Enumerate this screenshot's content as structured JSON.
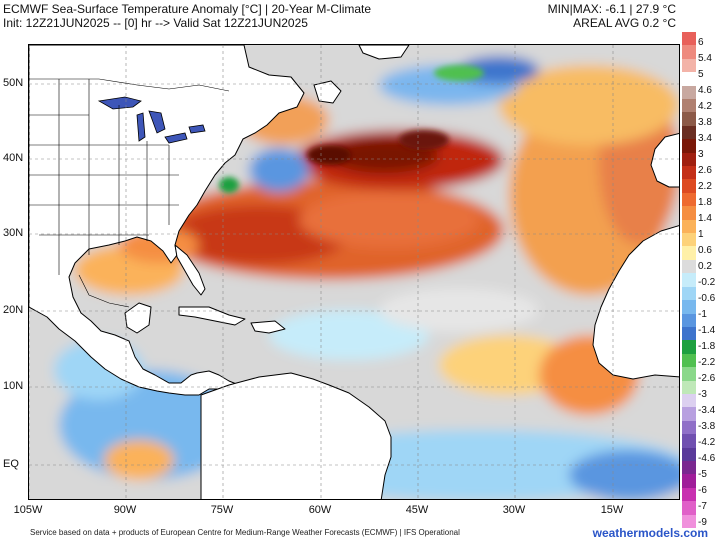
{
  "header": {
    "title_line1": "ECMWF Sea-Surface Temperature Anomaly [°C] | 20-Year M-Climate",
    "title_line2": "Init: 12Z21JUN2025 -- [0] hr --> Valid Sat 12Z21JUN2025",
    "minmax": "MIN|MAX: -6.1 | 27.9 °C",
    "areal_avg": "AREAL AVG 0.2 °C"
  },
  "axes": {
    "lat_labels": [
      "50N",
      "40N",
      "30N",
      "20N",
      "10N",
      "EQ"
    ],
    "lon_labels": [
      "105W",
      "90W",
      "75W",
      "60W",
      "45W",
      "30W",
      "15W"
    ]
  },
  "colorbar": {
    "labels": [
      "6",
      "5.4",
      "5",
      "4.6",
      "4.2",
      "3.8",
      "3.4",
      "3",
      "2.6",
      "2.2",
      "1.8",
      "1.4",
      "1",
      "0.6",
      "0.2",
      "-0.2",
      "-0.6",
      "-1",
      "-1.4",
      "-1.8",
      "-2.2",
      "-2.6",
      "-3",
      "-3.4",
      "-3.8",
      "-4.2",
      "-4.6",
      "-5",
      "-6",
      "-7",
      "-9"
    ],
    "colors": [
      "#e8605a",
      "#ee8a7e",
      "#f3b3a8",
      "#ffffff",
      "#c8a8a0",
      "#b08070",
      "#8c5a48",
      "#6a2e22",
      "#7a1808",
      "#a02010",
      "#c43018",
      "#dd4a22",
      "#ee6a30",
      "#f58e42",
      "#fbb25a",
      "#fdd27a",
      "#fff0a8",
      "#dcdcdc",
      "#c6ecfa",
      "#9fd6f6",
      "#78b8ee",
      "#5a96e0",
      "#3e74cc",
      "#1ea040",
      "#50c050",
      "#8ad88a",
      "#bfe8b8",
      "#dcd0f0",
      "#b8a0e0",
      "#9070c8",
      "#7050b0",
      "#5a3a9a",
      "#7a2890",
      "#a01e9a",
      "#c830b0",
      "#e060c8",
      "#f090dc"
    ]
  },
  "footer": {
    "credit": "Service based on data + products of European Centre for Medium-Range Weather Forecasts (ECMWF) | IFS Operational",
    "site": "weathermodels.com"
  }
}
